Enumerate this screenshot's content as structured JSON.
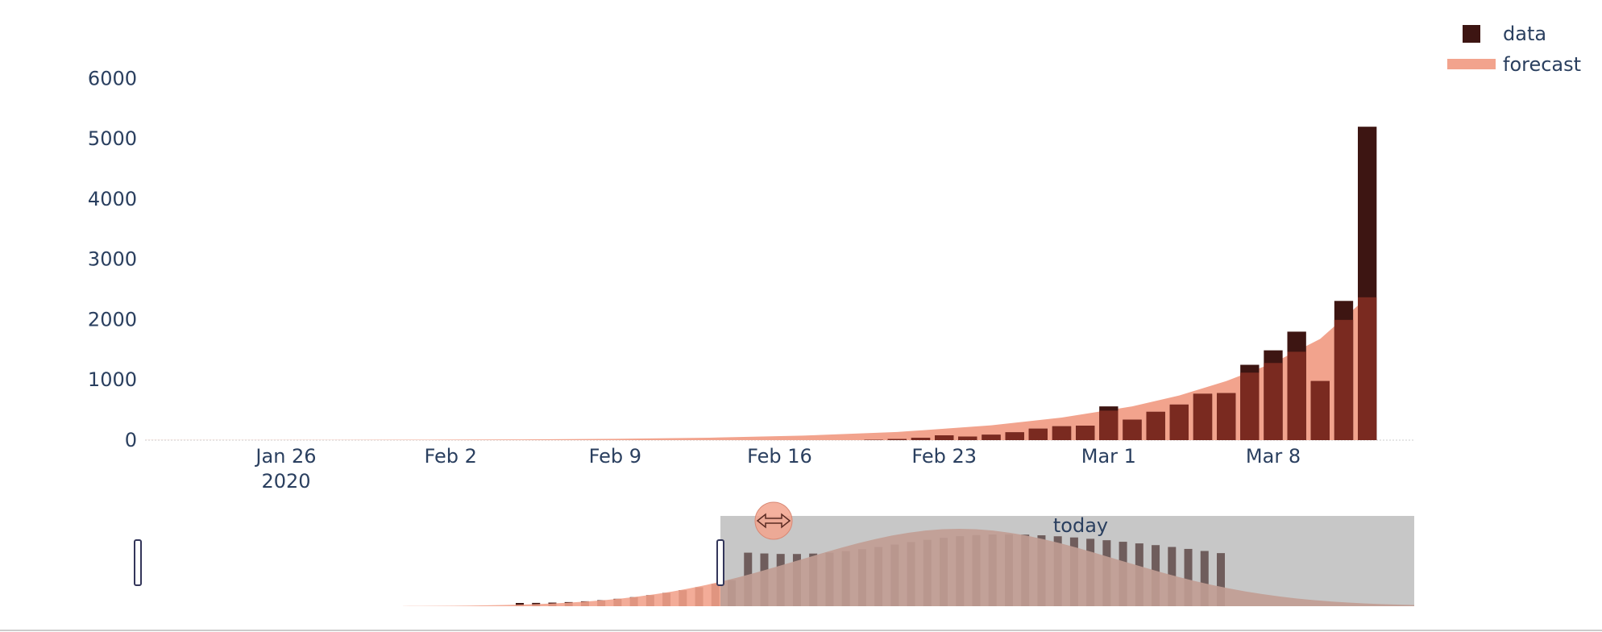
{
  "chart_data": {
    "type": "bar",
    "x_type": "date",
    "xlim": [
      "2020-01-20",
      "2020-03-14"
    ],
    "ylim": [
      0,
      6500
    ],
    "yticks": [
      0,
      1000,
      2000,
      3000,
      4000,
      5000,
      6000
    ],
    "xticks": [
      {
        "date": "2020-01-26",
        "label": "Jan 26",
        "sublabel": "2020"
      },
      {
        "date": "2020-02-02",
        "label": "Feb 2",
        "sublabel": ""
      },
      {
        "date": "2020-02-09",
        "label": "Feb 9",
        "sublabel": ""
      },
      {
        "date": "2020-02-16",
        "label": "Feb 16",
        "sublabel": ""
      },
      {
        "date": "2020-02-23",
        "label": "Feb 23",
        "sublabel": ""
      },
      {
        "date": "2020-03-01",
        "label": "Mar 1",
        "sublabel": ""
      },
      {
        "date": "2020-03-08",
        "label": "Mar 8",
        "sublabel": ""
      }
    ],
    "series": [
      {
        "name": "data",
        "kind": "bar",
        "color": "#3d1512",
        "points": [
          {
            "date": "2020-02-20",
            "value": 5
          },
          {
            "date": "2020-02-21",
            "value": 20
          },
          {
            "date": "2020-02-22",
            "value": 40
          },
          {
            "date": "2020-02-23",
            "value": 80
          },
          {
            "date": "2020-02-24",
            "value": 60
          },
          {
            "date": "2020-02-25",
            "value": 90
          },
          {
            "date": "2020-02-26",
            "value": 130
          },
          {
            "date": "2020-02-27",
            "value": 190
          },
          {
            "date": "2020-02-28",
            "value": 230
          },
          {
            "date": "2020-02-29",
            "value": 240
          },
          {
            "date": "2020-03-01",
            "value": 560
          },
          {
            "date": "2020-03-02",
            "value": 340
          },
          {
            "date": "2020-03-03",
            "value": 470
          },
          {
            "date": "2020-03-04",
            "value": 590
          },
          {
            "date": "2020-03-05",
            "value": 770
          },
          {
            "date": "2020-03-06",
            "value": 780
          },
          {
            "date": "2020-03-07",
            "value": 1250
          },
          {
            "date": "2020-03-08",
            "value": 1490
          },
          {
            "date": "2020-03-09",
            "value": 1800
          },
          {
            "date": "2020-03-10",
            "value": 980
          },
          {
            "date": "2020-03-11",
            "value": 2310
          },
          {
            "date": "2020-03-12",
            "value": 5200
          }
        ]
      },
      {
        "name": "forecast",
        "kind": "area",
        "color": "#f2a38d",
        "points": [
          {
            "date": "2020-01-20",
            "value": 1
          },
          {
            "date": "2020-01-24",
            "value": 2
          },
          {
            "date": "2020-01-28",
            "value": 4
          },
          {
            "date": "2020-02-01",
            "value": 7
          },
          {
            "date": "2020-02-05",
            "value": 12
          },
          {
            "date": "2020-02-09",
            "value": 22
          },
          {
            "date": "2020-02-13",
            "value": 40
          },
          {
            "date": "2020-02-17",
            "value": 75
          },
          {
            "date": "2020-02-21",
            "value": 135
          },
          {
            "date": "2020-02-25",
            "value": 245
          },
          {
            "date": "2020-02-28",
            "value": 375
          },
          {
            "date": "2020-03-02",
            "value": 560
          },
          {
            "date": "2020-03-04",
            "value": 740
          },
          {
            "date": "2020-03-06",
            "value": 980
          },
          {
            "date": "2020-03-08",
            "value": 1280
          },
          {
            "date": "2020-03-10",
            "value": 1680
          },
          {
            "date": "2020-03-12",
            "value": 2370
          }
        ]
      }
    ],
    "legend": {
      "position": "top-right",
      "entries": [
        "data",
        "forecast"
      ]
    },
    "grid": false,
    "rangeslider": {
      "visible": true,
      "annotation": "today",
      "shaded_from": "2020-02-16",
      "shaded_to": "2020-03-12"
    }
  },
  "colors": {
    "data": "#3d1512",
    "forecast": "#f2a38d",
    "overlap": "#7a2a20",
    "slider_shade": "#999999",
    "axis_text": "#2a3f5f"
  }
}
